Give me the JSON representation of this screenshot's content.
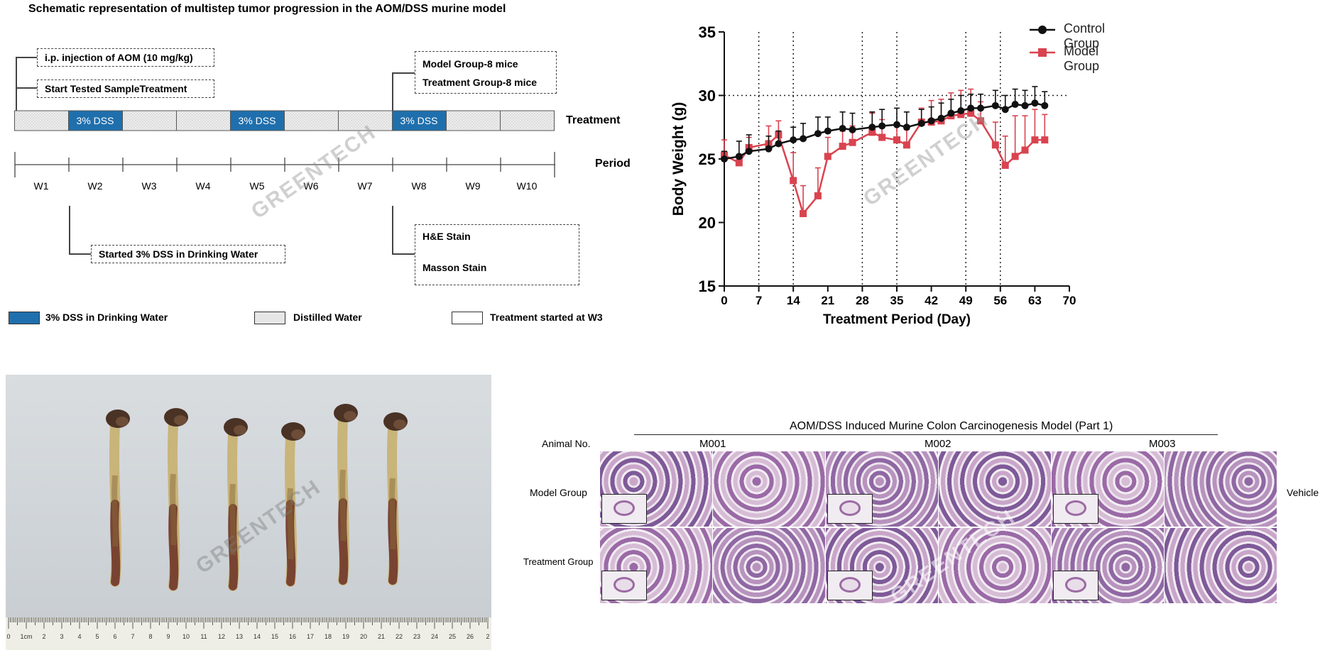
{
  "schematic": {
    "title": "Schematic representation of multistep tumor progression in the AOM/DSS murine model",
    "injection_label": "i.p. injection of AOM (10 mg/kg)",
    "start_label": "Start Tested SampleTreatment",
    "groups_line1": "Model Group-8 mice",
    "groups_line2": "Treatment Group-8 mice",
    "treatment_label": "Treatment",
    "period_label": "Period",
    "dss_label": "3% DSS",
    "weeks": [
      "W1",
      "W2",
      "W3",
      "W4",
      "W5",
      "W6",
      "W7",
      "W8",
      "W9",
      "W10"
    ],
    "dss_note": "Started 3% DSS in Drinking Water",
    "stain1": "H&E Stain",
    "stain2": "Masson Stain",
    "legend": [
      {
        "label": "3% DSS in Drinking Water",
        "color": "#1f6fad"
      },
      {
        "label": "Distilled  Water",
        "color": "#e6e6e6"
      },
      {
        "label": "Treatment started at W3",
        "color": "#ffffff"
      }
    ],
    "watermark": "GREENTECH"
  },
  "chart_data": {
    "type": "line",
    "xlabel": "Treatment Period (Day)",
    "ylabel": "Body Weight (g)",
    "xlim": [
      0,
      70
    ],
    "ylim": [
      15,
      35
    ],
    "xticks": [
      0,
      7,
      14,
      21,
      28,
      35,
      42,
      49,
      56,
      63,
      70
    ],
    "yticks": [
      15,
      20,
      25,
      30,
      35
    ],
    "vlines": [
      7,
      14,
      28,
      35,
      49,
      56
    ],
    "hline": 30,
    "legend_position": "top-right",
    "series": [
      {
        "name": "Control Group",
        "color": "#111111",
        "marker": "circle",
        "x": [
          0,
          3,
          5,
          9,
          11,
          14,
          16,
          19,
          21,
          24,
          26,
          30,
          32,
          35,
          37,
          40,
          42,
          44,
          46,
          48,
          50,
          52,
          55,
          57,
          59,
          61,
          63,
          65
        ],
        "y": [
          25.0,
          25.2,
          25.6,
          25.8,
          26.2,
          26.5,
          26.6,
          27.0,
          27.2,
          27.4,
          27.3,
          27.5,
          27.6,
          27.7,
          27.5,
          27.8,
          28.0,
          28.2,
          28.6,
          28.8,
          29.0,
          29.0,
          29.2,
          28.9,
          29.3,
          29.2,
          29.4,
          29.2
        ],
        "err": [
          0.6,
          1.2,
          1.3,
          1.0,
          1.0,
          1.0,
          1.2,
          1.3,
          1.1,
          1.3,
          1.3,
          1.2,
          1.3,
          1.3,
          1.2,
          1.1,
          1.1,
          1.2,
          1.1,
          1.2,
          1.1,
          1.1,
          1.2,
          1.1,
          1.2,
          1.2,
          1.3,
          1.1
        ]
      },
      {
        "name": "Model Group",
        "color": "#d9434f",
        "marker": "square",
        "x": [
          0,
          3,
          5,
          9,
          11,
          14,
          16,
          19,
          21,
          24,
          26,
          30,
          32,
          35,
          37,
          40,
          42,
          44,
          46,
          48,
          50,
          52,
          55,
          57,
          59,
          61,
          63,
          65
        ],
        "y": [
          25.3,
          24.7,
          25.9,
          26.2,
          26.9,
          23.3,
          20.7,
          22.1,
          25.2,
          26.0,
          26.3,
          27.1,
          26.7,
          26.5,
          26.1,
          27.9,
          27.9,
          28.0,
          28.4,
          28.5,
          28.6,
          28.0,
          26.1,
          24.5,
          25.2,
          25.7,
          26.5,
          26.5
        ],
        "err": [
          1.2,
          0.6,
          0.8,
          1.4,
          1.1,
          2.2,
          2.2,
          2.2,
          1.5,
          1.2,
          1.3,
          1.5,
          1.4,
          1.3,
          1.2,
          1.1,
          1.7,
          1.7,
          1.8,
          1.9,
          1.9,
          1.5,
          1.8,
          2.3,
          3.2,
          2.7,
          2.4,
          2.0
        ]
      }
    ],
    "watermark": "GREENTECH"
  },
  "photo": {
    "watermark": "GREENTECH",
    "ruler_labels": [
      "0",
      "1cm",
      "2",
      "3",
      "4",
      "5",
      "6",
      "7",
      "8",
      "9",
      "10",
      "11",
      "12",
      "13",
      "14",
      "15",
      "16",
      "17",
      "18",
      "19",
      "20",
      "21",
      "22",
      "23",
      "24",
      "25",
      "26",
      "2"
    ]
  },
  "histology": {
    "title": "AOM/DSS Induced Murine Colon Carcinogenesis Model (Part 1)",
    "animal_no_label": "Animal No.",
    "animals": [
      "M001",
      "M002",
      "M003"
    ],
    "rows": [
      "Model Group",
      "Treatment Group"
    ],
    "side_label": "Vehicle",
    "watermark": "GREENTECH"
  }
}
